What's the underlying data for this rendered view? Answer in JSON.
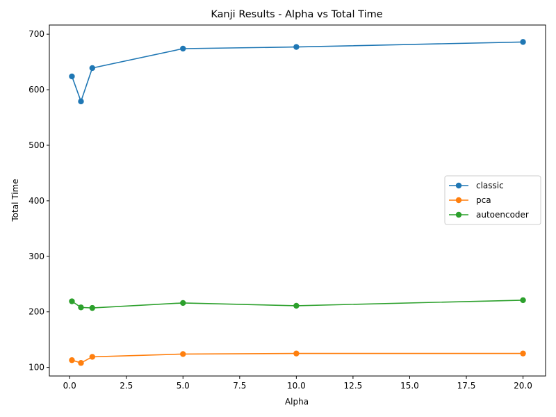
{
  "chart_data": {
    "type": "line",
    "title": "Kanji Results - Alpha vs Total Time",
    "xlabel": "Alpha",
    "ylabel": "Total Time",
    "x": [
      0.1,
      0.5,
      1.0,
      5.0,
      10.0,
      20.0
    ],
    "xlim": [
      -0.895,
      20.995
    ],
    "ylim": [
      84.5,
      716.5
    ],
    "xticks": [
      0.0,
      2.5,
      5.0,
      7.5,
      10.0,
      12.5,
      15.0,
      17.5,
      20.0
    ],
    "xtick_labels": [
      "0.0",
      "2.5",
      "5.0",
      "7.5",
      "10.0",
      "12.5",
      "15.0",
      "17.5",
      "20.0"
    ],
    "yticks": [
      100,
      200,
      300,
      400,
      500,
      600,
      700
    ],
    "ytick_labels": [
      "100",
      "200",
      "300",
      "400",
      "500",
      "600",
      "700"
    ],
    "grid": false,
    "legend_position": "center-right",
    "series": [
      {
        "name": "classic",
        "color": "#1f77b4",
        "values": [
          624,
          579,
          639,
          674,
          677,
          686
        ]
      },
      {
        "name": "pca",
        "color": "#ff7f0e",
        "values": [
          113,
          108,
          119,
          124,
          125,
          125
        ]
      },
      {
        "name": "autoencoder",
        "color": "#2ca02c",
        "values": [
          219,
          208,
          207,
          216,
          211,
          221
        ]
      }
    ]
  }
}
